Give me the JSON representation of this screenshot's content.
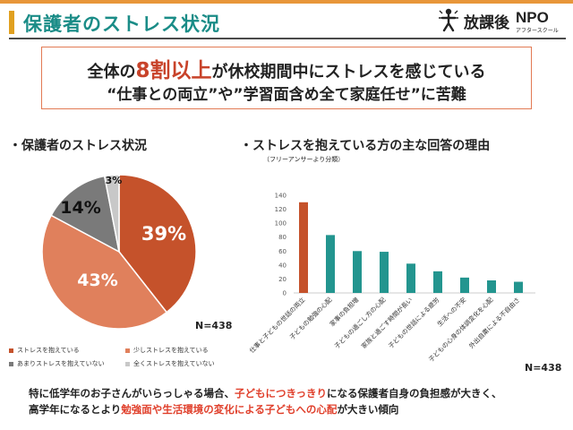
{
  "header": {
    "title": "保護者のストレス状況",
    "logo_text": "放課後",
    "logo_npo": "NPO",
    "logo_sub": "アフタースクール"
  },
  "headline": {
    "line1_prefix": "全体の",
    "line1_highlight": "8割以上",
    "line1_suffix": "が休校期間中にストレスを感じている",
    "line2": "“仕事との両立”や”学習面含め全て家庭任せ”に苦難"
  },
  "pie_section": {
    "title": "・保護者のストレス状況",
    "n_label": "N=438"
  },
  "bar_section": {
    "title": "・ストレスを抱えている方の主な回答の理由",
    "subtitle": "（フリーアンサーより分類）",
    "n_label": "N=438"
  },
  "footer": {
    "line1_a": "特に低学年のお子さんがいらっしゃる場合、",
    "line1_hl": "子どもにつきっきり",
    "line1_b": "になる保護者自身の負担感が大きく、",
    "line2_a": "高学年になるとより",
    "line2_hl": "勉強面や生活環境の変化による子どもへの心配",
    "line2_b": "が大きい傾向"
  },
  "chart_data": [
    {
      "type": "pie",
      "title": "保護者のストレス状況",
      "slices": [
        {
          "label": "ストレスを抱えている",
          "value": 39,
          "display": "39%",
          "color": "#c5522b"
        },
        {
          "label": "少しストレスを抱えている",
          "value": 43,
          "display": "43%",
          "color": "#e0805c"
        },
        {
          "label": "あまりストレスを抱えていない",
          "value": 14,
          "display": "14%",
          "color": "#7a7a7a"
        },
        {
          "label": "全くストレスを抱えていない",
          "value": 3,
          "display": "3%",
          "color": "#c8c8c8"
        }
      ],
      "legend_position": "bottom"
    },
    {
      "type": "bar",
      "title": "ストレスを抱えている方の主な回答の理由",
      "categories": [
        "仕事と子どもの世話の両立",
        "子どもの勉強の心配",
        "家事の負担増",
        "子どもの過ごし方の心配",
        "家族と過ごす時間が長い",
        "子どもの世話による疲労",
        "生活への不安",
        "子どもの心身の体調変化を心配",
        "外出自粛による不自由さ"
      ],
      "values": [
        130,
        83,
        60,
        59,
        42,
        31,
        22,
        18,
        16
      ],
      "colors": [
        "#c5522b",
        "#23958f",
        "#23958f",
        "#23958f",
        "#23958f",
        "#23958f",
        "#23958f",
        "#23958f",
        "#23958f"
      ],
      "yticks": [
        0,
        20,
        40,
        60,
        80,
        100,
        120,
        140
      ],
      "ylim": [
        0,
        140
      ],
      "grid": false
    }
  ]
}
